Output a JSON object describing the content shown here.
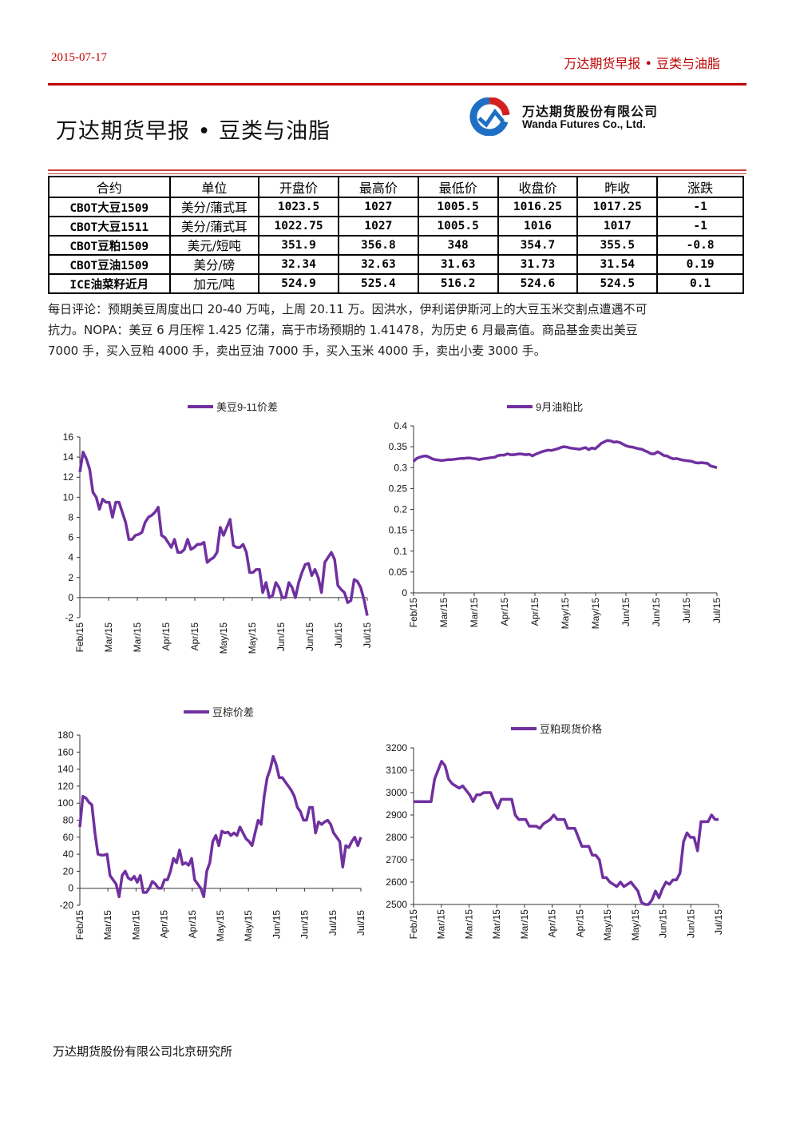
{
  "header": {
    "date": "2015-07-17",
    "right_title": "万达期货早报 • 豆类与油脂",
    "title": "万达期货早报 • 豆类与油脂",
    "logo_cn": "万达期货股份有限公司",
    "logo_en": "Wanda Futures Co., Ltd."
  },
  "table": {
    "headers": [
      "合约",
      "单位",
      "开盘价",
      "最高价",
      "最低价",
      "收盘价",
      "昨收",
      "涨跌"
    ],
    "rows": [
      [
        "CBOT大豆1509",
        "美分/蒲式耳",
        "1023.5",
        "1027",
        "1005.5",
        "1016.25",
        "1017.25",
        "-1"
      ],
      [
        "CBOT大豆1511",
        "美分/蒲式耳",
        "1022.75",
        "1027",
        "1005.5",
        "1016",
        "1017",
        "-1"
      ],
      [
        "CBOT豆粕1509",
        "美元/短吨",
        "351.9",
        "356.8",
        "348",
        "354.7",
        "355.5",
        "-0.8"
      ],
      [
        "CBOT豆油1509",
        "美分/磅",
        "32.34",
        "32.63",
        "31.63",
        "31.73",
        "31.54",
        "0.19"
      ],
      [
        "ICE油菜籽近月",
        "加元/吨",
        "524.9",
        "525.4",
        "516.2",
        "524.6",
        "524.5",
        "0.1"
      ]
    ]
  },
  "comment": {
    "lines": [
      "每日评论：预期美豆周度出口 20-40 万吨，上周 20.11 万。因洪水，伊利诺伊斯河上的大豆玉米交割点遭遇不可",
      "抗力。NOPA：美豆 6 月压榨 1.425 亿蒲，高于市场预期的 1.41478，为历史 6 月最高值。商品基金卖出美豆",
      "7000 手，买入豆粕 4000 手，卖出豆油 7000 手，买入玉米 4000 手，卖出小麦 3000 手。"
    ]
  },
  "footer": "万达期货股份有限公司北京研究所",
  "colors": {
    "accent": "#c00000",
    "series": "#7030a0"
  },
  "chart_data": [
    {
      "type": "line",
      "legend": "美豆9-11价差",
      "legend_position": "top",
      "ylim": [
        -2,
        16
      ],
      "yticks": [
        "16",
        "14",
        "12",
        "10",
        "8",
        "6",
        "4",
        "2",
        "0",
        "-2"
      ],
      "xticks": [
        "Feb/15",
        "Mar/15",
        "Mar/15",
        "Apr/15",
        "Apr/15",
        "May/15",
        "May/15",
        "Jun/15",
        "Jun/15",
        "Jul/15",
        "Jul/15"
      ],
      "y": [
        12.5,
        14.5,
        13.8,
        12.8,
        10.5,
        10.0,
        8.8,
        9.8,
        9.5,
        9.5,
        8.0,
        9.5,
        9.5,
        8.5,
        7.5,
        5.8,
        5.8,
        6.2,
        6.3,
        6.5,
        7.5,
        8.0,
        8.2,
        8.5,
        9.0,
        6.2,
        6.0,
        5.5,
        5.0,
        5.8,
        4.5,
        4.5,
        4.8,
        5.8,
        4.8,
        5.0,
        5.3,
        5.3,
        5.5,
        3.5,
        3.8,
        4.0,
        4.5,
        7.0,
        6.2,
        7.0,
        7.8,
        5.2,
        5.0,
        5.0,
        5.3,
        4.5,
        2.5,
        2.5,
        2.8,
        2.8,
        0.5,
        1.5,
        0.0,
        0.2,
        1.5,
        1.0,
        0.0,
        0.0,
        1.5,
        1.0,
        0.0,
        1.5,
        2.5,
        3.3,
        3.4,
        2.2,
        2.8,
        2.0,
        0.5,
        3.5,
        4.0,
        4.5,
        3.8,
        1.2,
        0.8,
        0.5,
        -0.5,
        -0.3,
        1.8,
        1.6,
        1.0,
        -0.2,
        -1.8
      ],
      "title": ""
    },
    {
      "type": "line",
      "legend": "9月油粕比",
      "legend_position": "top",
      "ylim": [
        0,
        0.4
      ],
      "yticks": [
        "0.4",
        "0.35",
        "0.3",
        "0.25",
        "0.2",
        "0.15",
        "0.1",
        "0.05",
        "0"
      ],
      "xticks": [
        "Feb/15",
        "Mar/15",
        "Mar/15",
        "Apr/15",
        "Apr/15",
        "May/15",
        "May/15",
        "Jun/15",
        "Jun/15",
        "Jul/15",
        "Jul/15"
      ],
      "y": [
        0.315,
        0.322,
        0.325,
        0.327,
        0.328,
        0.325,
        0.321,
        0.319,
        0.318,
        0.317,
        0.318,
        0.319,
        0.319,
        0.32,
        0.321,
        0.322,
        0.322,
        0.323,
        0.323,
        0.322,
        0.321,
        0.319,
        0.321,
        0.322,
        0.323,
        0.324,
        0.325,
        0.329,
        0.33,
        0.33,
        0.333,
        0.331,
        0.331,
        0.332,
        0.333,
        0.332,
        0.331,
        0.332,
        0.328,
        0.332,
        0.335,
        0.338,
        0.34,
        0.342,
        0.341,
        0.343,
        0.345,
        0.348,
        0.35,
        0.349,
        0.347,
        0.346,
        0.345,
        0.344,
        0.346,
        0.348,
        0.343,
        0.347,
        0.345,
        0.351,
        0.358,
        0.362,
        0.365,
        0.364,
        0.361,
        0.362,
        0.36,
        0.356,
        0.352,
        0.35,
        0.349,
        0.347,
        0.345,
        0.344,
        0.34,
        0.337,
        0.333,
        0.333,
        0.338,
        0.334,
        0.329,
        0.328,
        0.324,
        0.321,
        0.322,
        0.32,
        0.318,
        0.317,
        0.316,
        0.315,
        0.312,
        0.311,
        0.312,
        0.311,
        0.31,
        0.304,
        0.302,
        0.3
      ],
      "title": ""
    },
    {
      "type": "line",
      "legend": "豆棕价差",
      "legend_position": "top",
      "ylim": [
        -20,
        180
      ],
      "yticks": [
        "180",
        "160",
        "140",
        "120",
        "100",
        "80",
        "60",
        "40",
        "20",
        "0",
        "-20"
      ],
      "xticks": [
        "Feb/15",
        "Mar/15",
        "Mar/15",
        "Apr/15",
        "Apr/15",
        "May/15",
        "May/15",
        "Jun/15",
        "Jun/15",
        "Jul/15",
        "Jul/15"
      ],
      "y": [
        72,
        108,
        106,
        101,
        98,
        65,
        40,
        39,
        39,
        40,
        15,
        10,
        5,
        -10,
        15,
        20,
        12,
        10,
        14,
        7,
        15,
        -5,
        -5,
        0,
        8,
        5,
        0,
        0,
        10,
        10,
        20,
        35,
        30,
        45,
        28,
        30,
        27,
        35,
        10,
        5,
        0,
        -10,
        20,
        30,
        55,
        62,
        50,
        67,
        65,
        66,
        62,
        65,
        62,
        72,
        65,
        58,
        55,
        50,
        65,
        80,
        75,
        108,
        130,
        140,
        155,
        145,
        130,
        130,
        125,
        120,
        115,
        108,
        95,
        90,
        80,
        80,
        95,
        95,
        65,
        78,
        75,
        78,
        80,
        75,
        65,
        60,
        55,
        25,
        50,
        48,
        55,
        60,
        50,
        60
      ],
      "title": ""
    },
    {
      "type": "line",
      "legend": "豆粕现货价格",
      "legend_position": "top",
      "ylim": [
        2500,
        3200
      ],
      "yticks": [
        "3200",
        "3100",
        "3000",
        "2900",
        "2800",
        "2700",
        "2600",
        "2500"
      ],
      "xticks": [
        "Feb/15",
        "Mar/15",
        "Mar/15",
        "Mar/15",
        "Mar/15",
        "Apr/15",
        "Apr/15",
        "May/15",
        "May/15",
        "Jun/15",
        "Jun/15",
        "Jul/15"
      ],
      "y": [
        2960,
        2960,
        2960,
        2960,
        2960,
        2960,
        3060,
        3100,
        3140,
        3120,
        3060,
        3040,
        3030,
        3020,
        3030,
        3010,
        2990,
        2960,
        2990,
        2990,
        3000,
        3000,
        3000,
        2960,
        2930,
        2970,
        2970,
        2970,
        2970,
        2900,
        2880,
        2880,
        2880,
        2850,
        2850,
        2850,
        2840,
        2860,
        2870,
        2880,
        2900,
        2880,
        2880,
        2880,
        2840,
        2840,
        2840,
        2800,
        2760,
        2760,
        2760,
        2720,
        2720,
        2700,
        2620,
        2620,
        2600,
        2590,
        2580,
        2600,
        2580,
        2590,
        2600,
        2580,
        2560,
        2510,
        2500,
        2500,
        2520,
        2560,
        2530,
        2570,
        2600,
        2590,
        2610,
        2610,
        2640,
        2780,
        2820,
        2800,
        2800,
        2740,
        2870,
        2870,
        2870,
        2900,
        2880,
        2880
      ],
      "title": ""
    }
  ]
}
